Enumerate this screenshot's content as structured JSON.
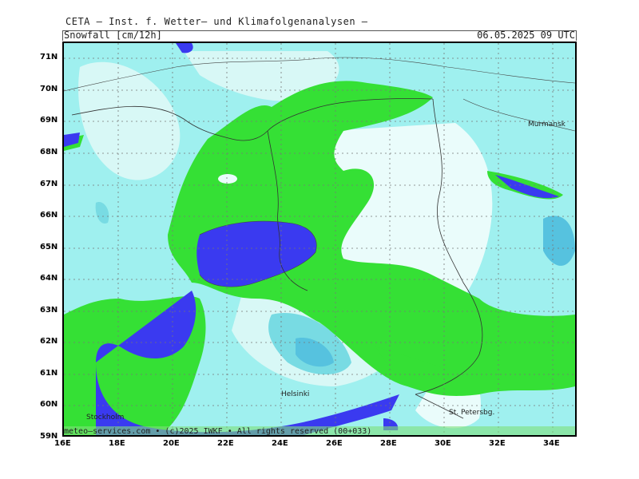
{
  "header": {
    "organization": "CETA — Inst. f. Wetter— und Klimafolgenanalysen —",
    "product": "Snowfall [cm/12h]",
    "datetime": "06.05.2025 09 UTC"
  },
  "axes": {
    "lat_labels": [
      "71N",
      "70N",
      "69N",
      "68N",
      "67N",
      "66N",
      "65N",
      "64N",
      "63N",
      "62N",
      "61N",
      "60N",
      "59N"
    ],
    "lon_labels": [
      "16E",
      "18E",
      "20E",
      "22E",
      "24E",
      "26E",
      "28E",
      "30E",
      "32E",
      "34E"
    ]
  },
  "cities": {
    "murmansk": "Murmansk",
    "helsinki": "Helsinki",
    "stockholm": "Stockholm",
    "st_petersburg": "St. Petersbg."
  },
  "footer": {
    "credit": "meteo—services.com • (c)2025 IWKF • All rights reserved (00+033)"
  },
  "colors": {
    "light_cyan": "#9ff0ef",
    "pale": "#d8f8f6",
    "white_cyan": "#eafcfb",
    "mid_cyan": "#78dbe3",
    "dark_cyan": "#56c2df",
    "green": "#35e035",
    "blue": "#3a3af0"
  }
}
